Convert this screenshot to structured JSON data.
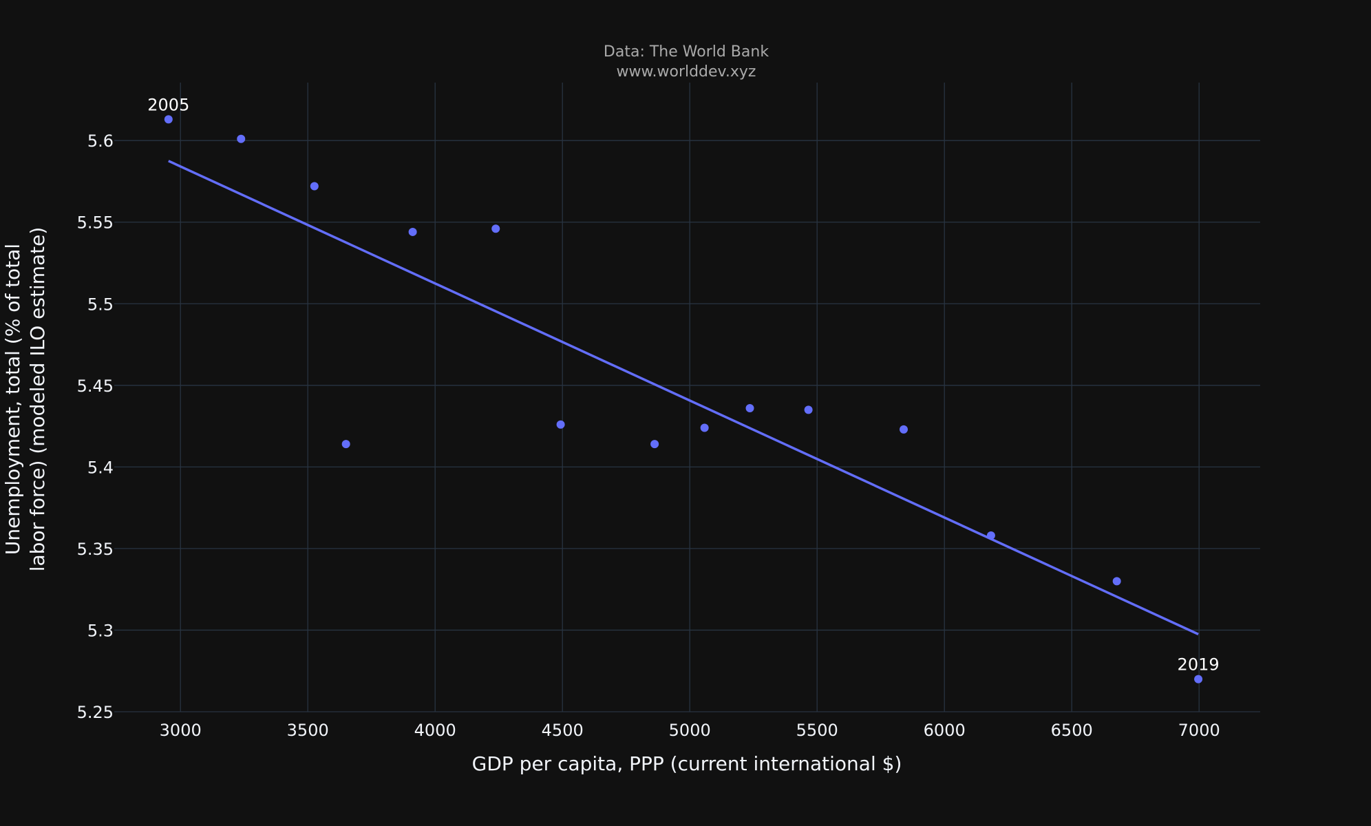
{
  "chart_data": {
    "type": "scatter",
    "source_lines": [
      "Data: The World Bank",
      "www.worlddev.xyz"
    ],
    "xlabel": "GDP per capita, PPP (current international $)",
    "ylabel_lines": [
      "Unemployment, total (% of total",
      "labor force) (modeled ILO estimate)"
    ],
    "xlim": [
      2740,
      7240
    ],
    "ylim": [
      5.25,
      5.6355
    ],
    "xticks": [
      3000,
      3500,
      4000,
      4500,
      5000,
      5500,
      6000,
      6500,
      7000
    ],
    "yticks": [
      5.25,
      5.3,
      5.35,
      5.4,
      5.45,
      5.5,
      5.55,
      5.6
    ],
    "grid": true,
    "colors": {
      "background": "#111111",
      "grid": "#283442",
      "series": "#636efa",
      "text": "#f2f5fa",
      "source": "#aaaaaa"
    },
    "points": [
      {
        "x": 2953,
        "y": 5.613,
        "label": "2005"
      },
      {
        "x": 3238,
        "y": 5.601
      },
      {
        "x": 3526,
        "y": 5.572
      },
      {
        "x": 3650,
        "y": 5.414
      },
      {
        "x": 3912,
        "y": 5.544
      },
      {
        "x": 4238,
        "y": 5.546
      },
      {
        "x": 4493,
        "y": 5.426
      },
      {
        "x": 4862,
        "y": 5.414
      },
      {
        "x": 5058,
        "y": 5.424
      },
      {
        "x": 5236,
        "y": 5.436
      },
      {
        "x": 5466,
        "y": 5.435
      },
      {
        "x": 5840,
        "y": 5.423
      },
      {
        "x": 6183,
        "y": 5.358
      },
      {
        "x": 6677,
        "y": 5.33
      },
      {
        "x": 6997,
        "y": 5.27,
        "label": "2019"
      }
    ],
    "trendline": [
      {
        "x": 2953,
        "y": 5.5875
      },
      {
        "x": 6997,
        "y": 5.2975
      }
    ]
  }
}
